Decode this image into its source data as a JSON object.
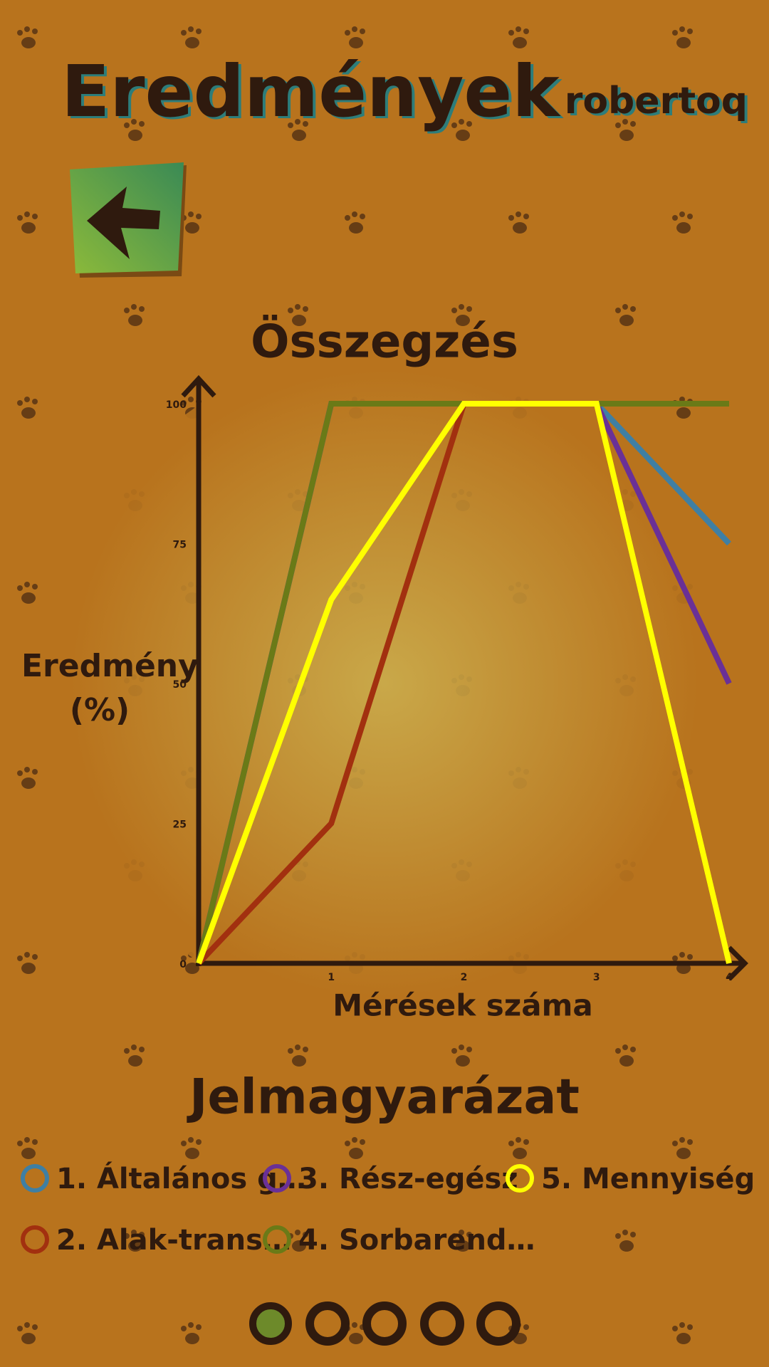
{
  "header": {
    "title": "Eredmények",
    "user": "robertoq"
  },
  "chart_data": {
    "type": "line",
    "title": "Összegzés",
    "xlabel": "Mérések száma",
    "ylabel": "Eredmény (%)",
    "x": [
      0,
      1,
      2,
      3,
      4
    ],
    "xlim": [
      0,
      4
    ],
    "xticks": [
      1,
      2,
      3,
      4
    ],
    "ylim": [
      0,
      100
    ],
    "yticks": [
      0,
      25,
      50,
      75,
      100
    ],
    "grid": false,
    "series": [
      {
        "name": "1. Általános g…",
        "color": "#3f7fa3",
        "values": [
          0,
          100,
          100,
          100,
          75
        ]
      },
      {
        "name": "2. Alak-trans…",
        "color": "#a2300f",
        "values": [
          0,
          25,
          100,
          100,
          0
        ]
      },
      {
        "name": "3. Rész-egész",
        "color": "#6a3096",
        "values": [
          0,
          100,
          100,
          100,
          50
        ]
      },
      {
        "name": "4. Sorbarend…",
        "color": "#6a7a17",
        "values": [
          0,
          100,
          100,
          100,
          100
        ]
      },
      {
        "name": "5. Mennyiség",
        "color": "#ffff00",
        "values": [
          0,
          65,
          100,
          100,
          0
        ]
      }
    ],
    "legend_title": "Jelmagyarázat"
  }
}
